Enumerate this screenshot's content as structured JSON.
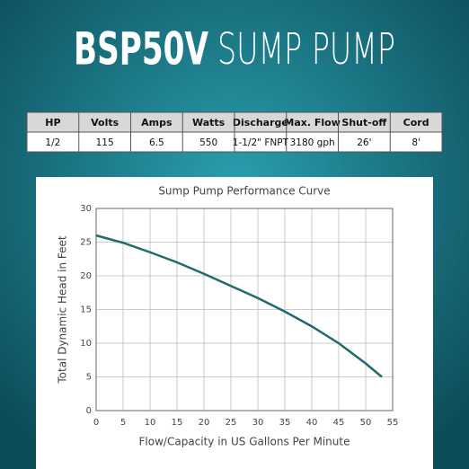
{
  "header": {
    "model": "BSP50V",
    "product": "SUMP PUMP"
  },
  "table": {
    "columns": [
      "HP",
      "Volts",
      "Amps",
      "Watts",
      "Discharge",
      "Max. Flow",
      "Shut-off",
      "Cord"
    ],
    "rows": [
      [
        "1/2",
        "115",
        "6.5",
        "550",
        "1-1/2\" FNPT",
        "3180 gph",
        "26'",
        "8'"
      ]
    ]
  },
  "chart_data": {
    "type": "line",
    "title": "Sump Pump Performance Curve",
    "x_label": "Flow/Capacity in US Gallons Per Minute",
    "y_label": "Total Dynamic Head in Feet",
    "x": [
      0,
      5,
      10,
      15,
      20,
      25,
      30,
      35,
      40,
      45,
      50,
      53
    ],
    "values": [
      26,
      24.9,
      23.5,
      22,
      20.3,
      18.5,
      16.7,
      14.7,
      12.5,
      10,
      7,
      5
    ],
    "color": "#1f6b6e",
    "xlim": [
      0,
      55
    ],
    "xticks": [
      0,
      5,
      10,
      15,
      20,
      25,
      30,
      35,
      40,
      45,
      50,
      55
    ],
    "ylim": [
      0,
      30
    ],
    "yticks": [
      0,
      5,
      10,
      15,
      20,
      25,
      30
    ],
    "grid": true
  }
}
